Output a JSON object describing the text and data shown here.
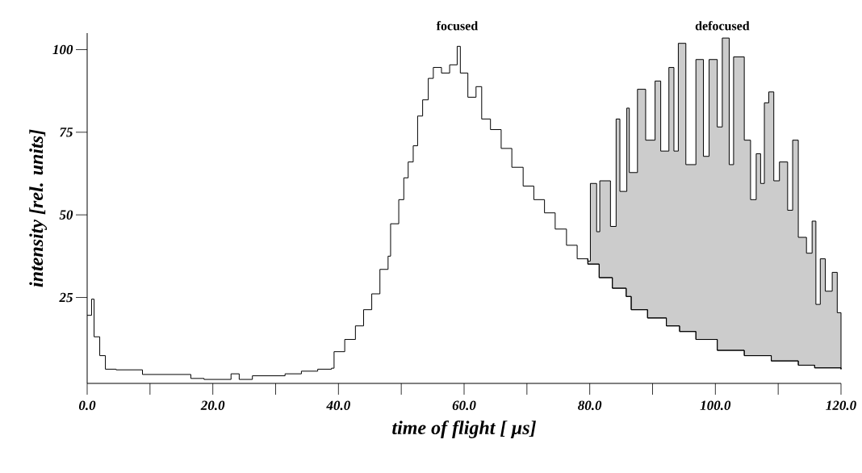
{
  "chart_data": {
    "type": "step",
    "xlabel": "time of flight [ µs]",
    "ylabel": "intensity [rel. units]",
    "xlim": [
      0,
      120
    ],
    "ylim": [
      -1,
      105
    ],
    "xticks": [
      {
        "value": 0,
        "label": "0.0"
      },
      {
        "value": 10,
        "label": null
      },
      {
        "value": 20,
        "label": "20.0"
      },
      {
        "value": 30,
        "label": null
      },
      {
        "value": 40,
        "label": "40.0"
      },
      {
        "value": 50,
        "label": null
      },
      {
        "value": 60,
        "label": "60.0"
      },
      {
        "value": 70,
        "label": null
      },
      {
        "value": 80,
        "label": "80.0"
      },
      {
        "value": 90,
        "label": null
      },
      {
        "value": 100,
        "label": "100.0"
      },
      {
        "value": 110,
        "label": null
      },
      {
        "value": 120,
        "label": "120.0"
      }
    ],
    "yticks": [
      25,
      50,
      75,
      100
    ],
    "series": [
      {
        "name": "focused",
        "color": "#000000",
        "x": [
          0,
          0.7,
          1.1,
          2.0,
          2.9,
          4.6,
          8.8,
          16.1,
          16.5,
          18.6,
          22.9,
          24.2,
          26.3,
          31.5,
          34.1,
          36.7,
          38.9,
          39.3,
          41,
          42.7,
          44,
          45.3,
          46.6,
          47.9,
          48.3,
          49.6,
          50.4,
          51.1,
          51.9,
          52.6,
          53.4,
          54.3,
          55.1,
          56.4,
          57.7,
          58.9,
          59.4,
          60.6,
          61.9,
          62.8,
          64.2,
          65.9,
          67.6,
          69.4,
          71.1,
          72.8,
          74.5,
          76.3,
          78,
          79.7,
          81.5,
          83.6,
          85.8,
          86.6,
          89.2,
          92.2,
          94.3,
          96.9,
          100.3,
          102.9,
          104.6,
          108.9,
          113.2,
          115.8,
          120
        ],
        "values": [
          19.6,
          24.5,
          13.1,
          7.4,
          3.3,
          3.1,
          1.7,
          1.7,
          0.5,
          0.2,
          1.9,
          0.2,
          1.3,
          1.9,
          2.7,
          3.3,
          3.6,
          8.6,
          12.3,
          16.4,
          21.3,
          26.1,
          33.5,
          37.5,
          47.3,
          54.6,
          61.2,
          66,
          70.9,
          79.9,
          84.8,
          91.3,
          94.6,
          92.9,
          95.4,
          101,
          92.9,
          85.6,
          88.8,
          79,
          75.8,
          70.1,
          64.4,
          58.7,
          54.6,
          50.6,
          45.7,
          40.8,
          36.7,
          35.1,
          31,
          27.8,
          25.3,
          21.3,
          18.8,
          16.4,
          14.7,
          12.3,
          9,
          9,
          7.4,
          5.8,
          4.5,
          3.7,
          3.3
        ]
      },
      {
        "name": "defocused",
        "type": "area",
        "color": "#cccccc",
        "x": [
          79.7,
          80.1,
          81.1,
          81.6,
          83.3,
          84.2,
          84.8,
          85.9,
          86.3,
          87.6,
          88.9,
          90.4,
          91.3,
          92.6,
          93.4,
          94.1,
          95.3,
          96.9,
          98.1,
          99,
          100.3,
          101.1,
          102.2,
          102.9,
          103.7,
          104.6,
          105.6,
          106.5,
          107.2,
          107.8,
          108.5,
          109.3,
          110.2,
          111.5,
          112.3,
          113.2,
          114.5,
          115.4,
          116,
          116.7,
          117.5,
          118.6,
          119.4,
          120
        ],
        "values": [
          36,
          59.5,
          44.9,
          60.3,
          46.5,
          79,
          57.1,
          82.3,
          62.8,
          88,
          72.6,
          90.5,
          69.3,
          94.6,
          69.3,
          101.9,
          65.2,
          97,
          67.7,
          97,
          76.6,
          103.5,
          65.2,
          97.8,
          97.8,
          72.6,
          54.6,
          68.5,
          59.5,
          83.9,
          87.2,
          60.3,
          66,
          51.4,
          72.6,
          43.2,
          38.4,
          48.1,
          22.9,
          36.7,
          26.9,
          32.6,
          20.4,
          20.4
        ]
      }
    ]
  }
}
